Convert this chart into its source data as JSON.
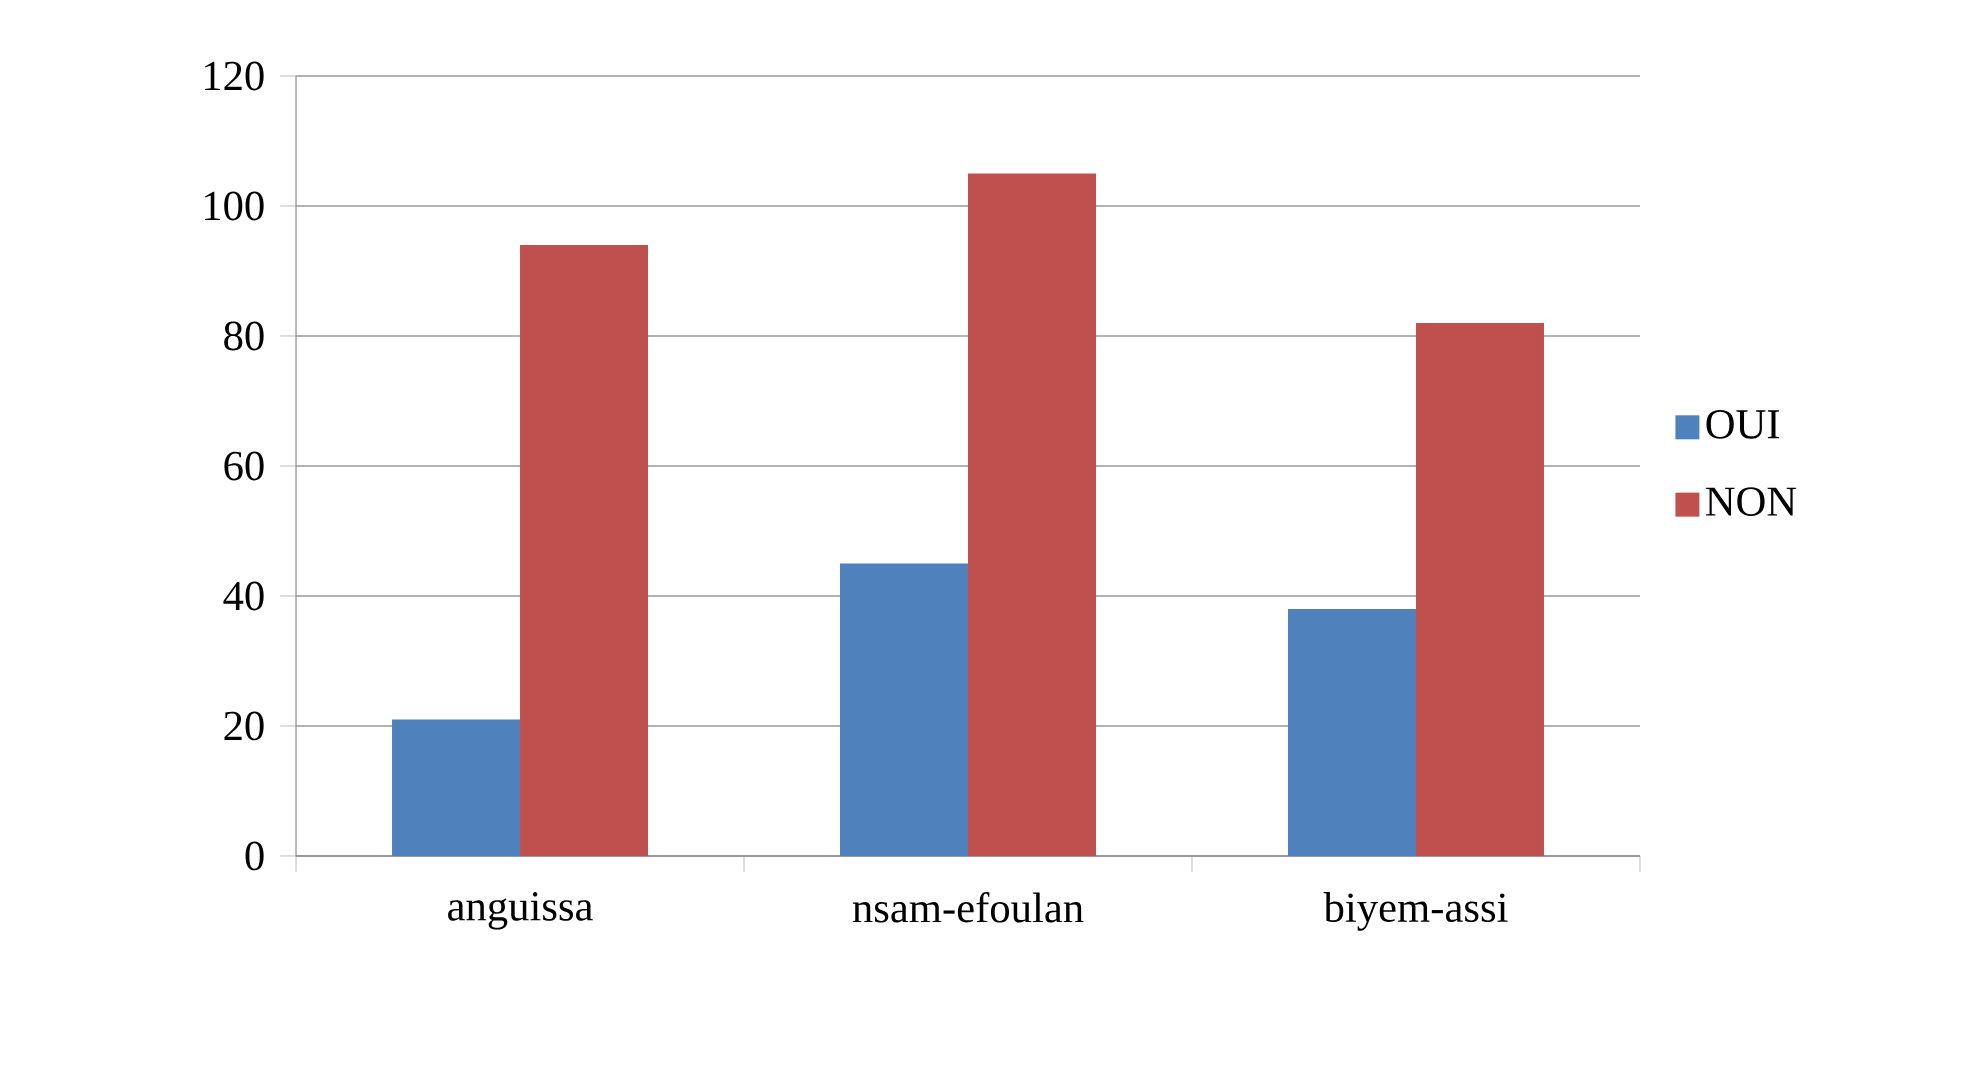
{
  "chart_data": {
    "type": "bar",
    "categories": [
      "anguissa",
      "nsam-efoulan",
      "biyem-assi"
    ],
    "series": [
      {
        "name": "OUI",
        "color": "#4f81bd",
        "values": [
          21,
          45,
          38
        ]
      },
      {
        "name": "NON",
        "color": "#c0504d",
        "values": [
          94,
          105,
          82
        ]
      }
    ],
    "ylim": [
      0,
      120
    ],
    "yticks": [
      0,
      20,
      40,
      60,
      80,
      100,
      120
    ],
    "grid": "y",
    "legend": "right"
  }
}
